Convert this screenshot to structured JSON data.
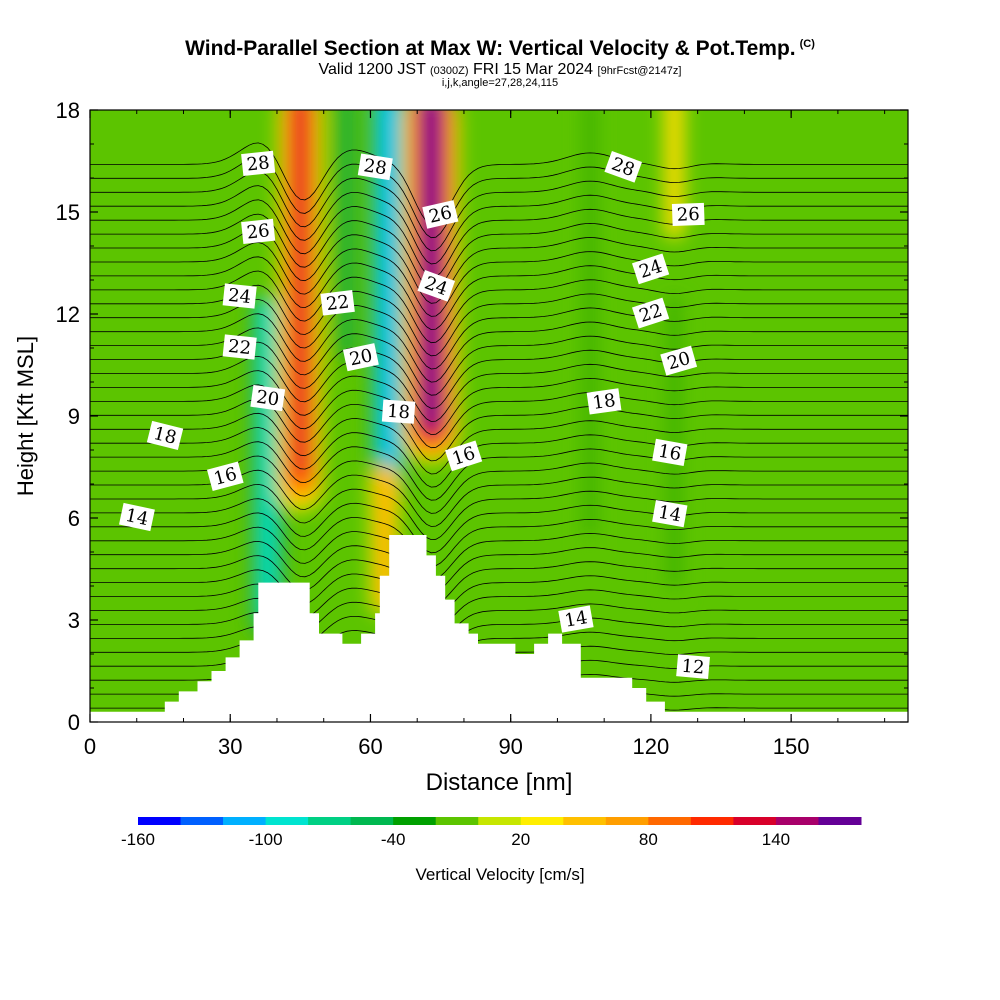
{
  "title": "Wind-Parallel Section at Max W: Vertical Velocity & Pot.Temp.",
  "title_mark": "(C)",
  "subtitle_valid": "Valid 1200 JST",
  "subtitle_utc": "(0300Z)",
  "subtitle_date": "FRI 15 Mar 2024",
  "subtitle_fcst": "[9hrFcst@2147z]",
  "subsubtitle": "i,j,k,angle=27,28,24,115",
  "chart_data": {
    "type": "heatmap",
    "xlabel": "Distance [nm]",
    "ylabel": "Height [Kft MSL]",
    "xlim": [
      0,
      175
    ],
    "ylim": [
      0,
      18
    ],
    "xticks": [
      0,
      30,
      60,
      90,
      120,
      150
    ],
    "yticks": [
      0,
      3,
      6,
      9,
      12,
      15,
      18
    ],
    "colorbar": {
      "label": "Vertical Velocity [cm/s]",
      "tick_labels": [
        "-160",
        "-100",
        "-40",
        "20",
        "80",
        "140"
      ],
      "tick_values": [
        -160,
        -100,
        -40,
        20,
        80,
        140
      ],
      "levels": [
        -160,
        -140,
        -120,
        -100,
        -80,
        -60,
        -40,
        -20,
        0,
        20,
        40,
        60,
        80,
        100,
        120,
        140,
        160
      ],
      "colors": [
        "#0000ff",
        "#0060ff",
        "#00b0ff",
        "#00e4d0",
        "#00d084",
        "#00b850",
        "#00a000",
        "#5cc400",
        "#c6e600",
        "#ffee00",
        "#ffc000",
        "#ff9e00",
        "#ff6800",
        "#ff2a00",
        "#d8002a",
        "#a8006a",
        "#640096"
      ]
    },
    "terrain": [
      [
        0,
        0.3
      ],
      [
        10,
        0.3
      ],
      [
        16,
        0.6
      ],
      [
        19,
        0.9
      ],
      [
        23,
        1.2
      ],
      [
        26,
        1.5
      ],
      [
        29,
        1.9
      ],
      [
        32,
        2.4
      ],
      [
        35,
        3.2
      ],
      [
        36,
        4.1
      ],
      [
        46,
        4.1
      ],
      [
        47,
        3.2
      ],
      [
        49,
        2.6
      ],
      [
        53,
        2.6
      ],
      [
        54,
        2.3
      ],
      [
        57,
        2.3
      ],
      [
        58,
        2.6
      ],
      [
        61,
        3.2
      ],
      [
        62,
        4.3
      ],
      [
        64,
        5.5
      ],
      [
        71,
        5.5
      ],
      [
        72,
        4.9
      ],
      [
        74,
        4.3
      ],
      [
        76,
        3.6
      ],
      [
        78,
        2.9
      ],
      [
        81,
        2.6
      ],
      [
        83,
        2.3
      ],
      [
        88,
        2.3
      ],
      [
        91,
        2.0
      ],
      [
        95,
        2.3
      ],
      [
        98,
        2.6
      ],
      [
        101,
        2.3
      ],
      [
        104,
        2.3
      ],
      [
        105,
        1.3
      ],
      [
        110,
        1.3
      ],
      [
        116,
        1.0
      ],
      [
        119,
        0.6
      ],
      [
        123,
        0.3
      ],
      [
        175,
        0.3
      ]
    ],
    "updraft_cores": [
      {
        "x": 45,
        "y_range": [
          6,
          18
        ],
        "w_max": 110
      },
      {
        "x": 73,
        "y_range": [
          7.5,
          18
        ],
        "w_max": 150
      },
      {
        "x": 125,
        "y_range": [
          14,
          18
        ],
        "w_max": 40
      },
      {
        "x": 63,
        "y_range": [
          3,
          7
        ],
        "w_max": 60
      }
    ],
    "downdraft_cores": [
      {
        "x": 38,
        "y_range": [
          2,
          12
        ],
        "w_min": -100
      },
      {
        "x": 64,
        "y_range": [
          6,
          18
        ],
        "w_min": -110
      },
      {
        "x": 55,
        "y_range": [
          10,
          18
        ],
        "w_min": -50
      },
      {
        "x": 107,
        "y_range": [
          4,
          18
        ],
        "w_min": -40
      },
      {
        "x": 125,
        "y_range": [
          3,
          12
        ],
        "w_min": -45
      }
    ],
    "isentropes": {
      "label": "Potential Temperature",
      "levels": [
        12,
        14,
        16,
        18,
        20,
        22,
        24,
        26,
        28
      ],
      "contour_labels": [
        {
          "text": "28",
          "x": 36,
          "y": 16.4
        },
        {
          "text": "28",
          "x": 61,
          "y": 16.3
        },
        {
          "text": "28",
          "x": 114,
          "y": 16.3
        },
        {
          "text": "26",
          "x": 36,
          "y": 14.4
        },
        {
          "text": "26",
          "x": 75,
          "y": 14.9
        },
        {
          "text": "26",
          "x": 128,
          "y": 14.9
        },
        {
          "text": "24",
          "x": 32,
          "y": 12.5
        },
        {
          "text": "24",
          "x": 74,
          "y": 12.8
        },
        {
          "text": "24",
          "x": 120,
          "y": 13.3
        },
        {
          "text": "22",
          "x": 32,
          "y": 11.0
        },
        {
          "text": "22",
          "x": 53,
          "y": 12.3
        },
        {
          "text": "22",
          "x": 120,
          "y": 12.0
        },
        {
          "text": "20",
          "x": 38,
          "y": 9.5
        },
        {
          "text": "20",
          "x": 58,
          "y": 10.7
        },
        {
          "text": "20",
          "x": 126,
          "y": 10.6
        },
        {
          "text": "18",
          "x": 16,
          "y": 8.4
        },
        {
          "text": "18",
          "x": 66,
          "y": 9.1
        },
        {
          "text": "18",
          "x": 110,
          "y": 9.4
        },
        {
          "text": "16",
          "x": 29,
          "y": 7.2
        },
        {
          "text": "16",
          "x": 80,
          "y": 7.8
        },
        {
          "text": "16",
          "x": 124,
          "y": 7.9
        },
        {
          "text": "14",
          "x": 10,
          "y": 6.0
        },
        {
          "text": "14",
          "x": 124,
          "y": 6.1
        },
        {
          "text": "14",
          "x": 104,
          "y": 3.0
        },
        {
          "text": "12",
          "x": 129,
          "y": 1.6
        }
      ]
    }
  }
}
